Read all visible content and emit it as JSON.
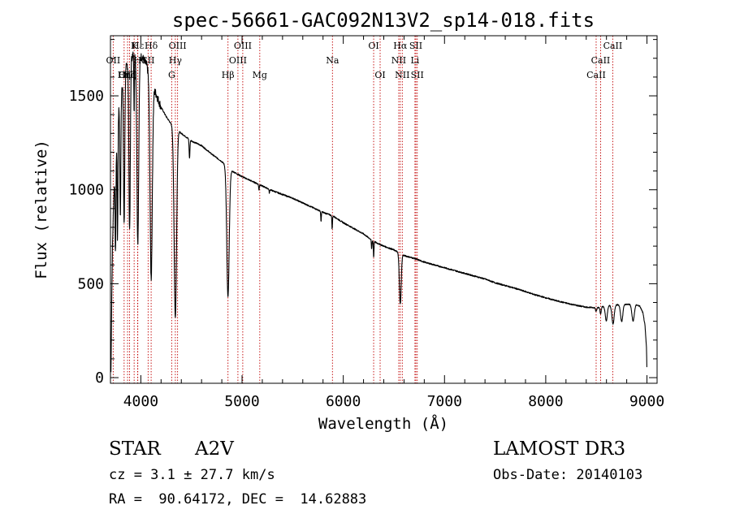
{
  "chart_data": {
    "type": "line",
    "title": "spec-56661-GAC092N13V2_sp14-018.fits",
    "xlabel": "Wavelength (Å)",
    "ylabel": "Flux (relative)",
    "xlim": [
      3700,
      9100
    ],
    "ylim": [
      -30,
      1820
    ],
    "xticks": [
      4000,
      5000,
      6000,
      7000,
      8000,
      9000
    ],
    "yticks": [
      0,
      500,
      1000,
      1500
    ],
    "xtick_labels": [
      "4000",
      "5000",
      "6000",
      "7000",
      "8000",
      "9000"
    ],
    "ytick_labels": [
      "0",
      "500",
      "1000",
      "1500"
    ],
    "line_color": "#000000",
    "marker_color": "#c00000",
    "series": [
      {
        "name": "flux",
        "continuum": [
          [
            3705,
            30
          ],
          [
            3712,
            400
          ],
          [
            3720,
            700
          ],
          [
            3732,
            950
          ],
          [
            3745,
            1100
          ],
          [
            3760,
            1250
          ],
          [
            3780,
            1420
          ],
          [
            3800,
            1520
          ],
          [
            3830,
            1600
          ],
          [
            3860,
            1660
          ],
          [
            3900,
            1700
          ],
          [
            3940,
            1730
          ],
          [
            3980,
            1720
          ],
          [
            4020,
            1700
          ],
          [
            4060,
            1660
          ],
          [
            4090,
            1600
          ],
          [
            4120,
            1550
          ],
          [
            4150,
            1510
          ],
          [
            4200,
            1440
          ],
          [
            4250,
            1390
          ],
          [
            4300,
            1350
          ],
          [
            4400,
            1300
          ],
          [
            4500,
            1260
          ],
          [
            4600,
            1235
          ],
          [
            4700,
            1190
          ],
          [
            4800,
            1150
          ],
          [
            4900,
            1100
          ],
          [
            5000,
            1070
          ],
          [
            5100,
            1045
          ],
          [
            5200,
            1020
          ],
          [
            5300,
            995
          ],
          [
            5400,
            975
          ],
          [
            5500,
            955
          ],
          [
            5600,
            930
          ],
          [
            5700,
            905
          ],
          [
            5800,
            880
          ],
          [
            5900,
            860
          ],
          [
            6000,
            825
          ],
          [
            6100,
            795
          ],
          [
            6200,
            765
          ],
          [
            6300,
            725
          ],
          [
            6400,
            700
          ],
          [
            6500,
            680
          ],
          [
            6600,
            650
          ],
          [
            6700,
            635
          ],
          [
            6800,
            615
          ],
          [
            6900,
            600
          ],
          [
            7000,
            585
          ],
          [
            7100,
            570
          ],
          [
            7200,
            555
          ],
          [
            7300,
            540
          ],
          [
            7400,
            525
          ],
          [
            7500,
            505
          ],
          [
            7600,
            490
          ],
          [
            7700,
            475
          ],
          [
            7800,
            458
          ],
          [
            7900,
            440
          ],
          [
            8000,
            425
          ],
          [
            8100,
            410
          ],
          [
            8200,
            397
          ],
          [
            8300,
            385
          ],
          [
            8400,
            375
          ],
          [
            8500,
            372
          ],
          [
            8600,
            382
          ],
          [
            8700,
            388
          ],
          [
            8800,
            390
          ],
          [
            8880,
            392
          ],
          [
            8930,
            380
          ],
          [
            8960,
            345
          ],
          [
            8980,
            280
          ],
          [
            8995,
            160
          ],
          [
            9000,
            30
          ]
        ],
        "absorption_lines": [
          {
            "center": 3750,
            "depth": 500,
            "width": 4
          },
          {
            "center": 3770,
            "depth": 600,
            "width": 4
          },
          {
            "center": 3798,
            "depth": 650,
            "width": 5
          },
          {
            "center": 3835,
            "depth": 800,
            "width": 6
          },
          {
            "center": 3889,
            "depth": 900,
            "width": 7
          },
          {
            "center": 3934,
            "depth": 300,
            "width": 3
          },
          {
            "center": 3970,
            "depth": 1000,
            "width": 9
          },
          {
            "center": 4102,
            "depth": 1050,
            "width": 11
          },
          {
            "center": 4341,
            "depth": 1010,
            "width": 12
          },
          {
            "center": 4481,
            "depth": 100,
            "width": 4
          },
          {
            "center": 4861,
            "depth": 690,
            "width": 12
          },
          {
            "center": 5167,
            "depth": 30,
            "width": 3
          },
          {
            "center": 5270,
            "depth": 20,
            "width": 3
          },
          {
            "center": 5780,
            "depth": 55,
            "width": 3
          },
          {
            "center": 5890,
            "depth": 70,
            "width": 3
          },
          {
            "center": 6280,
            "depth": 50,
            "width": 3
          },
          {
            "center": 6300,
            "depth": 85,
            "width": 3
          },
          {
            "center": 6563,
            "depth": 270,
            "width": 9
          },
          {
            "center": 8498,
            "depth": 20,
            "width": 6
          },
          {
            "center": 8542,
            "depth": 35,
            "width": 6
          },
          {
            "center": 8598,
            "depth": 80,
            "width": 10
          },
          {
            "center": 8665,
            "depth": 100,
            "width": 11
          },
          {
            "center": 8750,
            "depth": 90,
            "width": 11
          },
          {
            "center": 8863,
            "depth": 90,
            "width": 12
          }
        ]
      }
    ],
    "line_markers": [
      {
        "label": "Hε",
        "wavelength": 3970,
        "row": 0
      },
      {
        "label": "K",
        "wavelength": 3934,
        "row": 0
      },
      {
        "label": "Hδ",
        "wavelength": 4102,
        "row": 0
      },
      {
        "label": "OIII",
        "wavelength": 4363,
        "row": 0
      },
      {
        "label": "OIII",
        "wavelength": 5007,
        "row": 0
      },
      {
        "label": "OI",
        "wavelength": 6300,
        "row": 0
      },
      {
        "label": "Hα",
        "wavelength": 6563,
        "row": 0
      },
      {
        "label": "SII",
        "wavelength": 6717,
        "row": 0
      },
      {
        "label": "CaII",
        "wavelength": 8662,
        "row": 0
      },
      {
        "label": "OII",
        "wavelength": 3727,
        "row": 1
      },
      {
        "label": "H",
        "wavelength": 3968,
        "row": 1
      },
      {
        "label": "SII",
        "wavelength": 4072,
        "row": 1
      },
      {
        "label": "Hγ",
        "wavelength": 4341,
        "row": 1
      },
      {
        "label": "OIII",
        "wavelength": 4959,
        "row": 1
      },
      {
        "label": "Na",
        "wavelength": 5893,
        "row": 1
      },
      {
        "label": "NII",
        "wavelength": 6548,
        "row": 1
      },
      {
        "label": "Li",
        "wavelength": 6708,
        "row": 1
      },
      {
        "label": "CaII",
        "wavelength": 8542,
        "row": 1
      },
      {
        "label": "OIII",
        "wavelength": 3869,
        "row": 2
      },
      {
        "label": "Hη",
        "wavelength": 3835,
        "row": 2
      },
      {
        "label": "Hζ",
        "wavelength": 3889,
        "row": 2
      },
      {
        "label": "G",
        "wavelength": 4305,
        "row": 2
      },
      {
        "label": "Hβ",
        "wavelength": 4861,
        "row": 2
      },
      {
        "label": "Mg",
        "wavelength": 5175,
        "row": 2
      },
      {
        "label": "OI",
        "wavelength": 6364,
        "row": 2
      },
      {
        "label": "NII",
        "wavelength": 6583,
        "row": 2
      },
      {
        "label": "SII",
        "wavelength": 6731,
        "row": 2
      },
      {
        "label": "CaII",
        "wavelength": 8498,
        "row": 2
      }
    ]
  },
  "info": {
    "object_class": "STAR",
    "subclass": "A2V",
    "redshift_text": "cz = 3.1 ± 27.7 km/s",
    "coords_text": "RA =  90.64172, DEC =  14.62883",
    "survey": "LAMOST DR3",
    "obs_date_text": "Obs-Date: 20140103"
  }
}
